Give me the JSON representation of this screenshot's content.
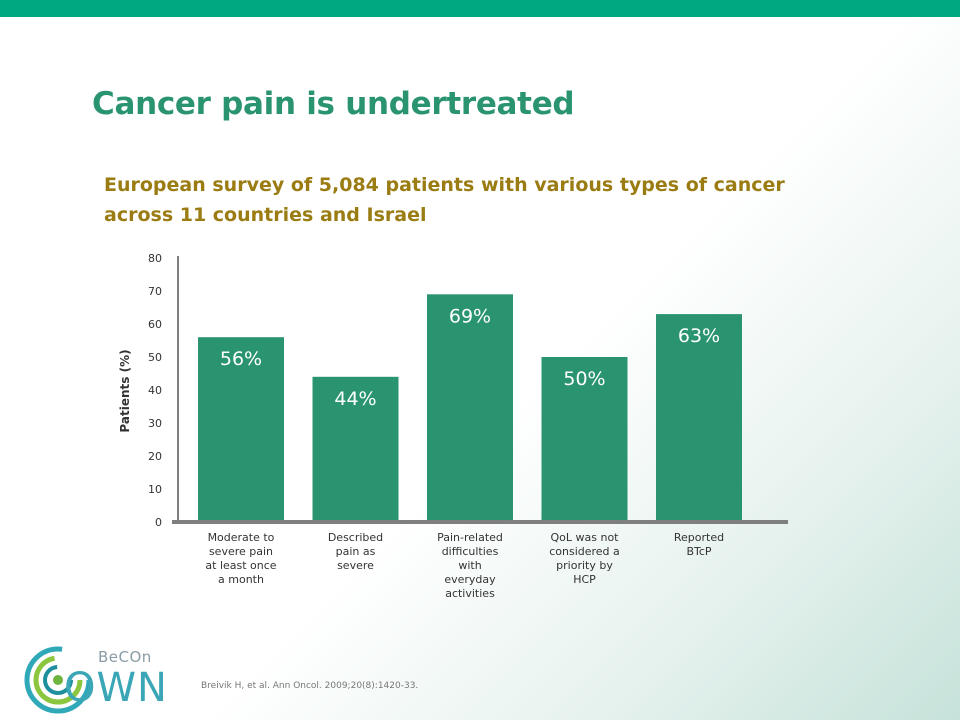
{
  "slide": {
    "title": "Cancer pain is undertreated",
    "subtitle": "European survey of 5,084 patients with various types of cancer across 11 countries and Israel",
    "source": "Breivik H, et al. Ann Oncol. 2009;20(8):1420-33."
  },
  "logo": {
    "becon": "BeCOn",
    "own": "OWN"
  },
  "colors": {
    "accent": "#00a882",
    "title": "#2a9470",
    "subtitle": "#9a7c12",
    "bar": "#2a9470",
    "axis": "#7f7f7f"
  },
  "chart_data": {
    "type": "bar",
    "ylabel": "Patients (%)",
    "ylim": [
      0,
      80
    ],
    "yticks": [
      0,
      10,
      20,
      30,
      40,
      50,
      60,
      70,
      80
    ],
    "grid": false,
    "categories": [
      [
        "Moderate to",
        "severe pain",
        "at least once",
        "a month"
      ],
      [
        "Described",
        "pain as",
        "severe"
      ],
      [
        "Pain-related",
        "difficulties",
        "with",
        "everyday",
        "activities"
      ],
      [
        "QoL was not",
        "considered a",
        "priority by",
        "HCP"
      ],
      [
        "Reported",
        "BTcP"
      ]
    ],
    "values": [
      56,
      44,
      69,
      50,
      63
    ],
    "data_labels": [
      "56%",
      "44%",
      "69%",
      "50%",
      "63%"
    ]
  }
}
